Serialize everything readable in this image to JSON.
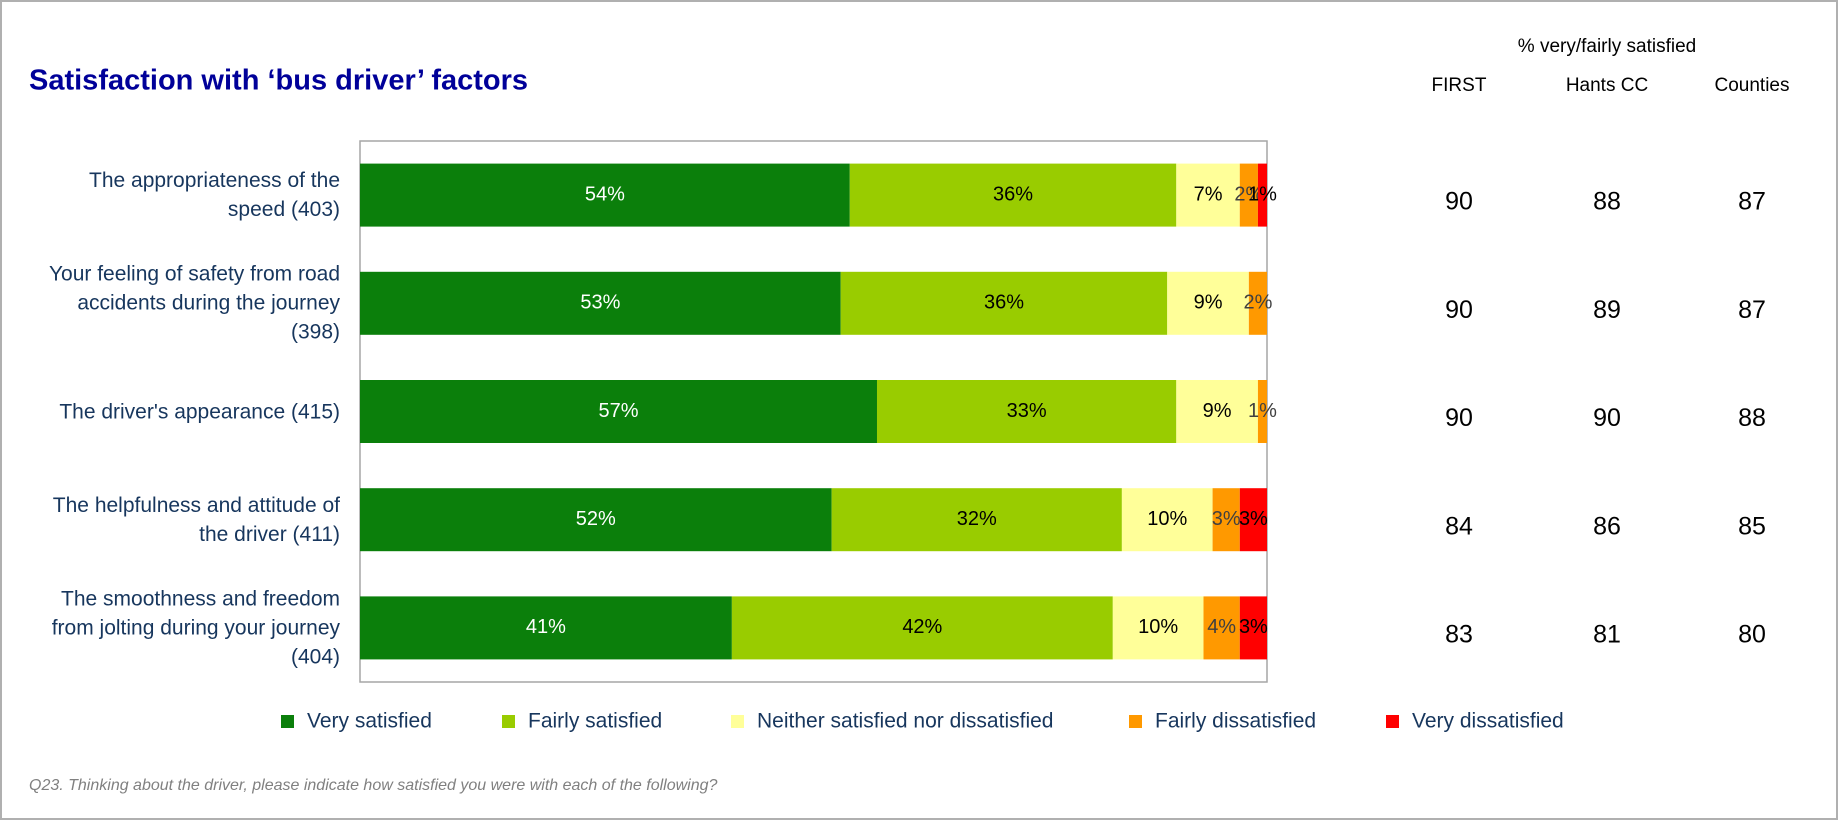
{
  "chart_data": {
    "type": "stacked_barh",
    "title": "Satisfaction with ‘bus driver’ factors",
    "categories": [
      "The appropriateness of the speed (403)",
      "Your feeling of safety from road accidents during the journey (398)",
      "The driver's appearance (415)",
      "The helpfulness and attitude of the driver (411)",
      "The smoothness and freedom from jolting during your journey (404)"
    ],
    "xlim": [
      0,
      100
    ],
    "legend": "bottom",
    "series": [
      {
        "name": "Very satisfied",
        "color": "#0b7f0b",
        "values": [
          54,
          53,
          57,
          52,
          41
        ],
        "value_labels": [
          "54%",
          "53%",
          "57%",
          "52%",
          "41%"
        ]
      },
      {
        "name": "Fairly satisfied",
        "color": "#99cc00",
        "values": [
          36,
          36,
          33,
          32,
          42
        ],
        "value_labels": [
          "36%",
          "36%",
          "33%",
          "32%",
          "42%"
        ]
      },
      {
        "name": "Neither satisfied nor dissatisfied",
        "color": "#ffff99",
        "values": [
          7,
          9,
          9,
          10,
          10
        ],
        "value_labels": [
          "7%",
          "9%",
          "9%",
          "10%",
          "10%"
        ]
      },
      {
        "name": "Fairly dissatisfied",
        "color": "#ff9900",
        "values": [
          2,
          2,
          1,
          3,
          4
        ],
        "value_labels": [
          "2%",
          "2%",
          "1%",
          "3%",
          "4%"
        ]
      },
      {
        "name": "Very dissatisfied",
        "color": "#ff0000",
        "values": [
          1,
          null,
          null,
          3,
          3
        ],
        "value_labels": [
          "1%",
          null,
          null,
          "3%",
          "3%"
        ]
      }
    ],
    "footnote": "Q23.  Thinking about the driver, please indicate how satisfied you were with each of the following?"
  },
  "table": {
    "title": "% very/fairly satisfied",
    "columns": [
      "FIRST",
      "Hants CC",
      "Counties"
    ],
    "rows": [
      [
        90,
        88,
        87
      ],
      [
        90,
        89,
        87
      ],
      [
        90,
        90,
        88
      ],
      [
        84,
        86,
        85
      ],
      [
        83,
        81,
        80
      ]
    ]
  }
}
